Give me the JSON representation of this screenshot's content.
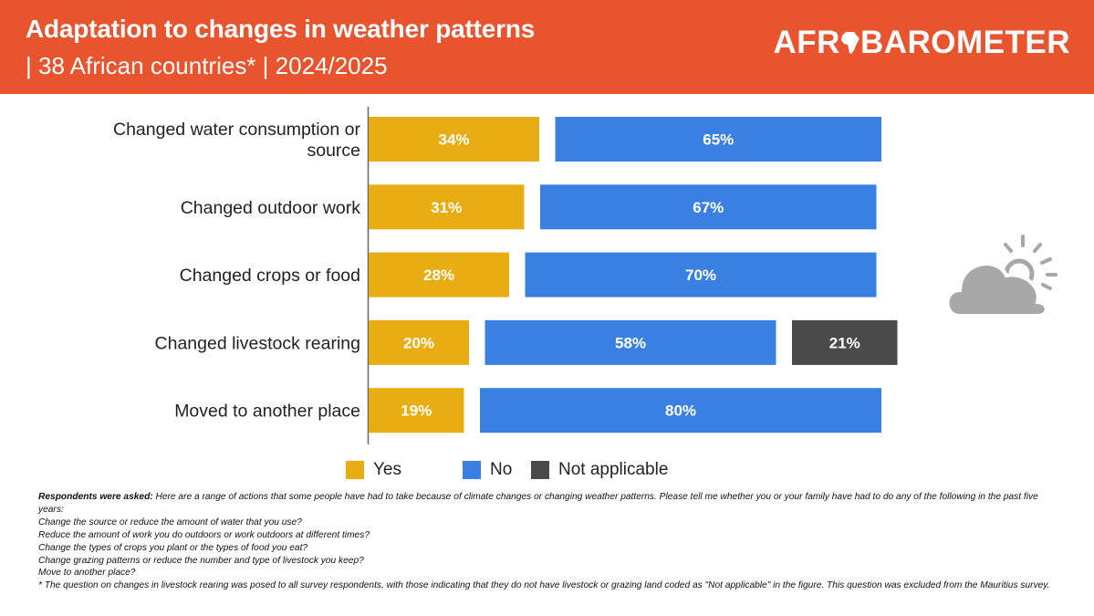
{
  "header": {
    "title": "Adaptation to changes in weather patterns",
    "subtitle": "| 38 African countries* | 2024/2025",
    "brand_left": "AFR",
    "brand_right": "BAROMETER"
  },
  "colors": {
    "header": "#E8542E",
    "yes": "#E8AD12",
    "no": "#3A80E2",
    "not_applicable": "#4A4A4A",
    "icon": "#A8A8A8"
  },
  "chart_data": {
    "type": "bar",
    "orientation": "horizontal",
    "stacked": true,
    "title": "Adaptation to changes in weather patterns",
    "categories": [
      [
        "Changed water consumption or",
        "source"
      ],
      [
        "Changed outdoor work"
      ],
      [
        "Changed crops or food"
      ],
      [
        "Changed livestock rearing"
      ],
      [
        "Moved to another place"
      ]
    ],
    "series": [
      {
        "name": "Yes",
        "color": "#E8AD12",
        "values": [
          34,
          31,
          28,
          20,
          19
        ],
        "labels": [
          "34%",
          "31%",
          "28%",
          "20%",
          "19%"
        ]
      },
      {
        "name": "No",
        "color": "#3A80E2",
        "values": [
          65,
          67,
          70,
          58,
          80
        ],
        "labels": [
          "65%",
          "67%",
          "70%",
          "58%",
          "80%"
        ]
      },
      {
        "name": "Not applicable",
        "color": "#4A4A4A",
        "values": [
          0,
          0,
          0,
          21,
          0
        ],
        "labels": [
          "",
          "",
          "",
          "21%",
          ""
        ]
      }
    ],
    "xlim": [
      0,
      100
    ],
    "legend_position": "bottom",
    "grid": false
  },
  "legend": [
    {
      "label": "Yes",
      "color": "#E8AD12"
    },
    {
      "label": "No",
      "color": "#3A80E2"
    },
    {
      "label": "Not applicable",
      "color": "#4A4A4A"
    }
  ],
  "weather_icon": "cloud-sun-icon",
  "notes": {
    "prompt_label": "Respondents were asked:",
    "prompt_text": " Here are a range of actions that some people have had to take because of climate changes or changing weather patterns. Please tell me whether you or your family have had to do any of the following in the past five years:",
    "questions": [
      "Change the source or reduce the amount of water that you use?",
      "Reduce the amount of work you do outdoors or work outdoors at different times?",
      "Change the types of crops you plant or the types of food you eat?",
      "Change grazing patterns or reduce the number and type of livestock you keep?",
      "Move to another place?"
    ],
    "footnote": "* The question on changes in livestock rearing was posed to all survey respondents, with those indicating that they do not have livestock or grazing land coded as \"Not applicable\" in the figure. This question was excluded from the Mauritius survey."
  }
}
